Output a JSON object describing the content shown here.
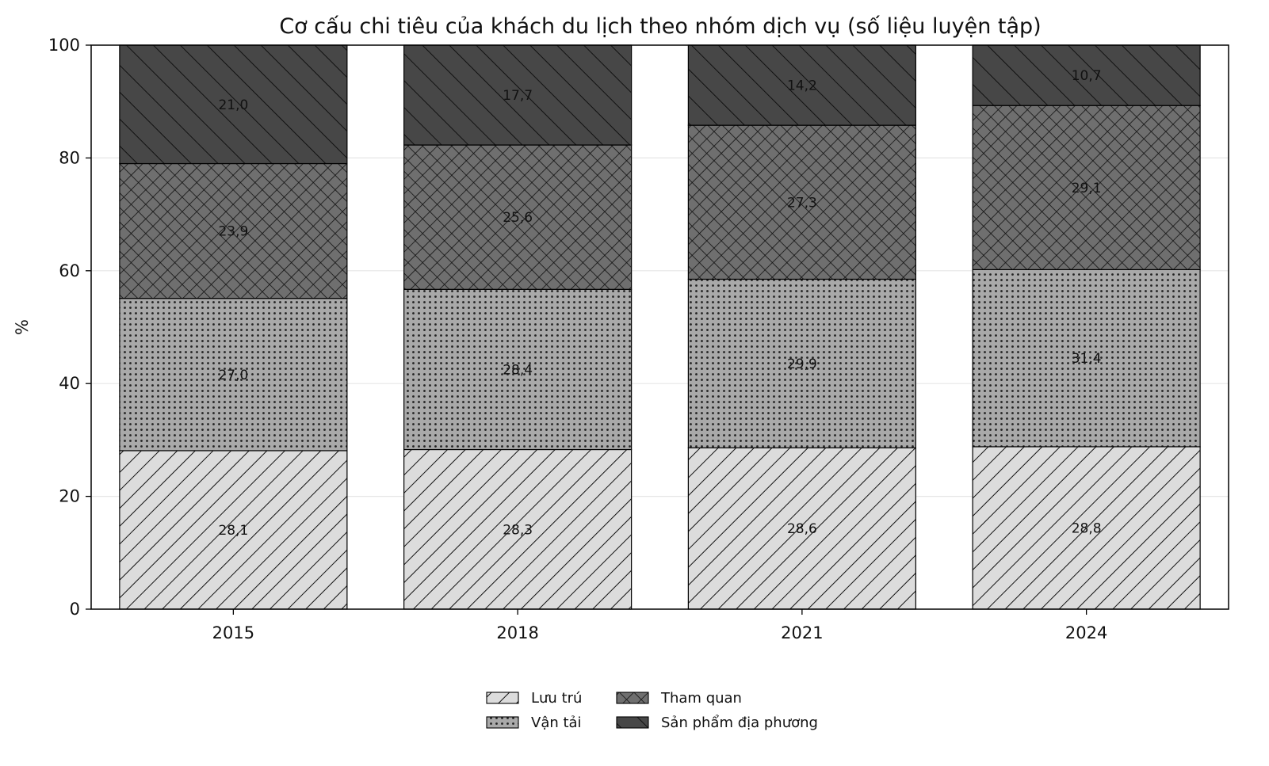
{
  "chart_data": {
    "type": "bar",
    "stacked": true,
    "title": "Cơ cấu chi tiêu của khách du lịch theo nhóm dịch vụ (số liệu luyện tập)",
    "xlabel": "",
    "ylabel": "%",
    "ylim": [
      0,
      100
    ],
    "yticks": [
      "0",
      "20",
      "40",
      "60",
      "80",
      "100"
    ],
    "grid": "horizontal",
    "legend_position": "bottom-center",
    "categories": [
      "2015",
      "2018",
      "2021",
      "2024"
    ],
    "series": [
      {
        "name": "Lưu trú",
        "values": [
          28.1,
          28.3,
          28.6,
          28.8
        ],
        "labels": [
          "28,1",
          "28,3",
          "28,6",
          "28,8"
        ],
        "color": "#dcdcdc",
        "pattern": "diagonal"
      },
      {
        "name": "Vận tải",
        "values": [
          27.0,
          28.4,
          29.9,
          31.4
        ],
        "labels": [
          "27,0",
          "28,4",
          "29,9",
          "31,4"
        ],
        "color": "#a9a9a9",
        "pattern": "dots"
      },
      {
        "name": "Tham quan",
        "values": [
          23.9,
          25.6,
          27.3,
          29.1
        ],
        "labels": [
          "23,9",
          "25,6",
          "27,3",
          "29,1"
        ],
        "color": "#6f6f6f",
        "pattern": "crosshatch"
      },
      {
        "name": "Sản phẩm địa phương",
        "values": [
          21.0,
          17.7,
          14.2,
          10.7
        ],
        "labels": [
          "21,0",
          "17,7",
          "14,2",
          "10,7"
        ],
        "color": "#474747",
        "pattern": "backslash"
      }
    ]
  }
}
